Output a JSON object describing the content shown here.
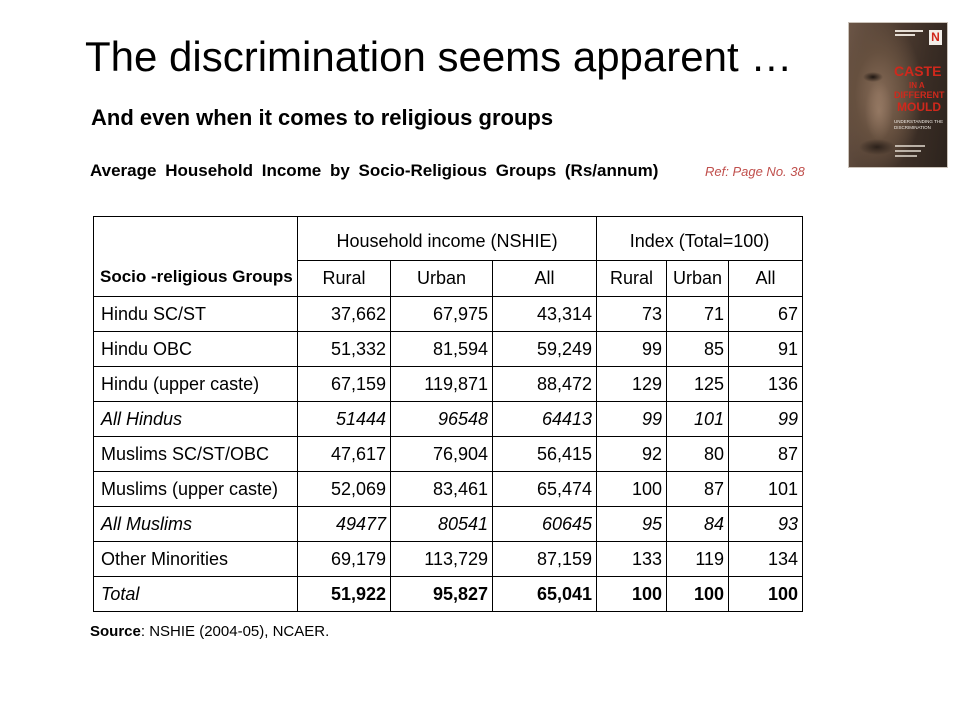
{
  "slide": {
    "title": "The discrimination seems apparent …",
    "subtitle": "And even when it comes to religious groups",
    "table_caption": "Average Household Income by Socio-Religious Groups (Rs/annum)",
    "reference": "Ref: Page No. 38",
    "source_label": "Source",
    "source_text": ": NSHIE (2004-05), NCAER."
  },
  "book_cover": {
    "logo_letter": "N",
    "title_lines": [
      "CASTE",
      "IN A",
      "DIFFERENT",
      "MOULD"
    ],
    "subtitle_lines": [
      "UNDERSTANDING THE",
      "DISCRIMINATION"
    ]
  },
  "table": {
    "row_header_label": "Socio -religious Groups",
    "group_headers": [
      "Household income (NSHIE)",
      "Index (Total=100)"
    ],
    "column_headers": [
      "Rural",
      "Urban",
      "All",
      "Rural",
      "Urban",
      "All"
    ],
    "rows": [
      {
        "label": "Hindu SC/ST",
        "values": [
          "37,662",
          "67,975",
          "43,314",
          "73",
          "71",
          "67"
        ]
      },
      {
        "label": "Hindu OBC",
        "values": [
          "51,332",
          "81,594",
          "59,249",
          "99",
          "85",
          "91"
        ]
      },
      {
        "label": "Hindu (upper caste)",
        "values": [
          "67,159",
          "119,871",
          "88,472",
          "129",
          "125",
          "136"
        ]
      },
      {
        "label": "All Hindus",
        "values": [
          "51444",
          "96548",
          "64413",
          "99",
          "101",
          "99"
        ]
      },
      {
        "label": "Muslims SC/ST/OBC",
        "values": [
          "47,617",
          "76,904",
          "56,415",
          "92",
          "80",
          "87"
        ]
      },
      {
        "label": "Muslims (upper caste)",
        "values": [
          "52,069",
          "83,461",
          "65,474",
          "100",
          "87",
          "101"
        ]
      },
      {
        "label": "All Muslims",
        "values": [
          "49477",
          "80541",
          "60645",
          "95",
          "84",
          "93"
        ]
      },
      {
        "label": "Other Minorities",
        "values": [
          "69,179",
          "113,729",
          "87,159",
          "133",
          "119",
          "134"
        ]
      },
      {
        "label": "Total",
        "values": [
          "51,922",
          "95,827",
          "65,041",
          "100",
          "100",
          "100"
        ]
      }
    ]
  },
  "colors": {
    "text": "#000000",
    "reference": "#c0504d",
    "table_border": "#000000",
    "cover_title": "#d0281c",
    "cover_background": "#4b3a2f"
  }
}
